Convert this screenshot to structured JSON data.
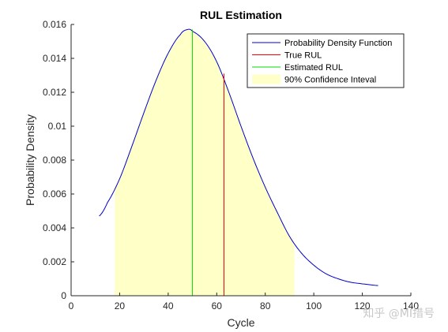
{
  "chart_data": {
    "type": "line",
    "title": "RUL Estimation",
    "xlabel": "Cycle",
    "ylabel": "Probability Density",
    "xlim": [
      0,
      140
    ],
    "ylim": [
      0,
      0.016
    ],
    "x_ticks": [
      0,
      20,
      40,
      60,
      80,
      100,
      120,
      140
    ],
    "y_ticks": [
      0,
      0.002,
      0.004,
      0.006,
      0.008,
      0.01,
      0.012,
      0.014,
      0.016
    ],
    "x_tick_labels": [
      "0",
      "20",
      "40",
      "60",
      "80",
      "100",
      "120",
      "140"
    ],
    "y_tick_labels": [
      "0",
      "0.002",
      "0.004",
      "0.006",
      "0.008",
      "0.01",
      "0.012",
      "0.014",
      "0.016"
    ],
    "grid": false,
    "legend_position": "top-right",
    "series": [
      {
        "name": "Probability Density Function",
        "color": "#0000cc",
        "x": [
          11.6,
          15,
          20,
          25,
          30,
          35,
          40,
          45,
          48,
          50,
          55,
          60,
          65,
          70,
          75,
          80,
          85,
          90,
          95,
          100,
          105,
          110,
          115,
          120,
          126.5
        ],
        "y": [
          0.0047,
          0.0055,
          0.0069,
          0.0088,
          0.0108,
          0.0127,
          0.0143,
          0.0154,
          0.0157,
          0.0156,
          0.015,
          0.0138,
          0.012,
          0.01,
          0.0081,
          0.0064,
          0.0049,
          0.0035,
          0.0025,
          0.0018,
          0.0013,
          0.001,
          0.0008,
          0.0007,
          0.0006
        ]
      },
      {
        "name": "True RUL",
        "color": "#ff0000",
        "x": [
          63,
          63
        ],
        "y": [
          0,
          0.0131
        ]
      },
      {
        "name": "Estimated RUL",
        "color": "#00dd00",
        "x": [
          50,
          50
        ],
        "y": [
          0,
          0.0157
        ]
      },
      {
        "name": "90% Confidence Inteval",
        "color": "#ffffc8",
        "x_range": [
          18,
          92
        ]
      }
    ]
  },
  "watermark": "知乎 @MI措号"
}
